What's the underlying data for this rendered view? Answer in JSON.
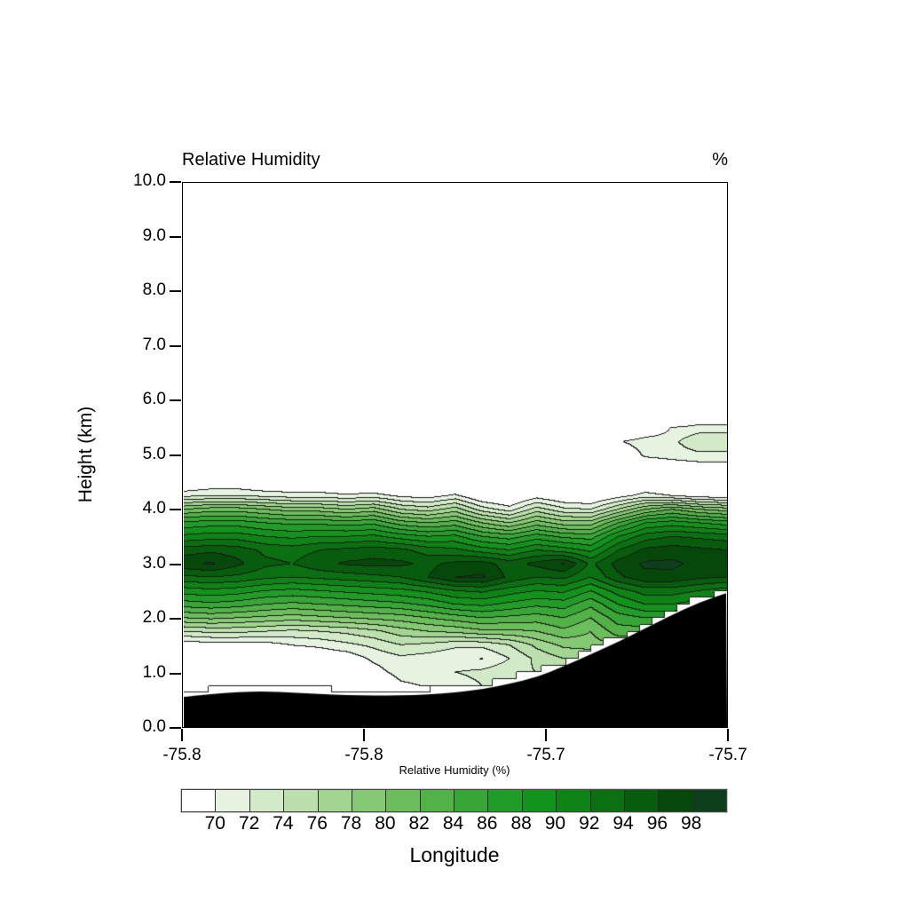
{
  "title": "Relative Humidity",
  "units_label": "%",
  "axes": {
    "x_label": "Longitude",
    "y_label": "Height (km)",
    "x_tick_labels": [
      "-75.8",
      "-75.8",
      "-75.7",
      "-75.7"
    ],
    "y_tick_labels": [
      "0.0",
      "1.0",
      "2.0",
      "3.0",
      "4.0",
      "5.0",
      "6.0",
      "7.0",
      "8.0",
      "9.0",
      "10.0"
    ]
  },
  "colorbar": {
    "title": "Relative Humidity (%)",
    "labels": [
      "70",
      "72",
      "74",
      "76",
      "78",
      "80",
      "82",
      "84",
      "86",
      "88",
      "90",
      "92",
      "94",
      "96",
      "98"
    ]
  },
  "chart_data": {
    "type": "heatmap",
    "title": "Relative Humidity",
    "units": "%",
    "xlabel": "Longitude",
    "ylabel": "Height (km)",
    "x_range": [
      -75.8,
      -75.7
    ],
    "y_range_km": [
      0,
      10
    ],
    "contour_levels": [
      70,
      72,
      74,
      76,
      78,
      80,
      82,
      84,
      86,
      88,
      90,
      92,
      94,
      96,
      98
    ],
    "fill_colors": [
      "#ffffff",
      "#e6f3e0",
      "#d2eac8",
      "#bbdfad",
      "#a1d590",
      "#86c974",
      "#6cbd5b",
      "#52b147",
      "#38a537",
      "#229c28",
      "#12931c",
      "#0e8316",
      "#0b7011",
      "#085c0d",
      "#064809",
      "#0d3f1c"
    ],
    "contour_line_color": "#1a1a1a",
    "x_lon": [
      -75.8,
      -75.795,
      -75.79,
      -75.785,
      -75.78,
      -75.775,
      -75.77,
      -75.765,
      -75.76,
      -75.755,
      -75.75,
      -75.745,
      -75.74,
      -75.735,
      -75.73,
      -75.725,
      -75.72,
      -75.715,
      -75.71,
      -75.705,
      -75.7
    ],
    "z_km": [
      6.0,
      5.75,
      5.5,
      5.25,
      5.0,
      4.75,
      4.5,
      4.25,
      4.0,
      3.75,
      3.5,
      3.25,
      3.0,
      2.75,
      2.5,
      2.25,
      2.0,
      1.75,
      1.5,
      1.25,
      1.0,
      0.75,
      0.5
    ],
    "rh_grid": [
      [
        60,
        60,
        60,
        60,
        60,
        60,
        60,
        60,
        60,
        60,
        60,
        60,
        60,
        60,
        60,
        60,
        60,
        60,
        60,
        60,
        60
      ],
      [
        60,
        60,
        60,
        60,
        60,
        60,
        60,
        60,
        60,
        60,
        60,
        60,
        60,
        60,
        60,
        60,
        60,
        60,
        63,
        67,
        67
      ],
      [
        60,
        60,
        60,
        60,
        60,
        60,
        60,
        60,
        60,
        60,
        60,
        60,
        60,
        60,
        60,
        60,
        62,
        66,
        70.3,
        71,
        71
      ],
      [
        60,
        60,
        60,
        60,
        60,
        60,
        60,
        60,
        60,
        60,
        60,
        60,
        60,
        60,
        60,
        62,
        69.6,
        71.8,
        71.5,
        73.6,
        73.6
      ],
      [
        60,
        60,
        60,
        60,
        60,
        60,
        60,
        60,
        60,
        60,
        60,
        60,
        60,
        60,
        60,
        61,
        66,
        70.5,
        71,
        71.5,
        71.5
      ],
      [
        61,
        61,
        61,
        61,
        61,
        61,
        61,
        61,
        61,
        61,
        61,
        61,
        61,
        61,
        61,
        61,
        62,
        67,
        68,
        68.5,
        68.5
      ],
      [
        67,
        68,
        68,
        67,
        67,
        67,
        66,
        66,
        65,
        65,
        66,
        64,
        63,
        65,
        64,
        63,
        65,
        67,
        66,
        65,
        65
      ],
      [
        71.5,
        72,
        72,
        71.5,
        71,
        71,
        70.5,
        71,
        69.5,
        69,
        70.5,
        67.5,
        66.5,
        69,
        67.5,
        67,
        69,
        71,
        70,
        69,
        68.5
      ],
      [
        80,
        81,
        81,
        80,
        79,
        79,
        78,
        79,
        76,
        75,
        77,
        73,
        71,
        75,
        72.5,
        72,
        76,
        80,
        82,
        80,
        79
      ],
      [
        86.5,
        87,
        87,
        86,
        85.5,
        85.5,
        85,
        85.5,
        83,
        82,
        83,
        80,
        78,
        81,
        79,
        79,
        84,
        88,
        89,
        88,
        87
      ],
      [
        90.5,
        91,
        91,
        90,
        89.5,
        90,
        90,
        90.5,
        89,
        88,
        88.5,
        86,
        85,
        87,
        85.5,
        85,
        90,
        93,
        94,
        93.5,
        93
      ],
      [
        95,
        95.5,
        95,
        93.5,
        93,
        94,
        94.5,
        95,
        94.5,
        93,
        92.5,
        91,
        90,
        92,
        91,
        89.5,
        94,
        96.5,
        97,
        96.5,
        96
      ],
      [
        97.5,
        98.3,
        96.5,
        94.5,
        94,
        95.5,
        96.3,
        96.6,
        96.4,
        95.5,
        96.5,
        96.8,
        95,
        96.6,
        98.2,
        93.5,
        96.8,
        98.3,
        98.4,
        97.5,
        97
      ],
      [
        93.5,
        94,
        93.5,
        92.5,
        92,
        92.5,
        93,
        93.5,
        94,
        96,
        98,
        98.3,
        95.5,
        94,
        94.5,
        92,
        95.5,
        97.5,
        97.5,
        96.5,
        96
      ],
      [
        89,
        89.5,
        89,
        88,
        87.5,
        88,
        88.5,
        89,
        89.5,
        90.5,
        92,
        92.5,
        91,
        90,
        90.5,
        88,
        91,
        93,
        93,
        92,
        91
      ],
      [
        85,
        85.5,
        85,
        84,
        83.5,
        84,
        84.5,
        85,
        85.5,
        86.5,
        88,
        88.5,
        87.5,
        86.5,
        87,
        84.5,
        88,
        90,
        90,
        89,
        88
      ],
      [
        80,
        80.5,
        80,
        79.5,
        79,
        79.5,
        80,
        80.5,
        81,
        82,
        83,
        84,
        83.5,
        83,
        84,
        82,
        85,
        86,
        86,
        86,
        86
      ],
      [
        74,
        74.5,
        74.5,
        74,
        73.5,
        74,
        74.5,
        75.5,
        77,
        78,
        78.5,
        79.5,
        79.5,
        80,
        81.5,
        80,
        83,
        83,
        83,
        83,
        83
      ],
      [
        68.5,
        69,
        69,
        69,
        70.1,
        70.5,
        71.5,
        72.5,
        74,
        73.5,
        72.5,
        72.5,
        74,
        76.5,
        78.5,
        79,
        80,
        80,
        80,
        80,
        80
      ],
      [
        64,
        64.5,
        65,
        66,
        67,
        68,
        68.5,
        70.5,
        71.5,
        71,
        70.3,
        69.9,
        72,
        74.5,
        76,
        76,
        76,
        76,
        76,
        76,
        76
      ],
      [
        62,
        62.5,
        63,
        64,
        65,
        66,
        66.5,
        69,
        71,
        71.5,
        72,
        72.5,
        73.5,
        74,
        74,
        74,
        74,
        74,
        74,
        74,
        74
      ],
      [
        66,
        67,
        67,
        67,
        66.5,
        66,
        66,
        66.5,
        69.5,
        70.2,
        71,
        72,
        72,
        72,
        72,
        72,
        72,
        72,
        72,
        72,
        72
      ],
      [
        60,
        60,
        60,
        60,
        60,
        60,
        60,
        60,
        60,
        60,
        60,
        60,
        60,
        60,
        60,
        60,
        60,
        60,
        60,
        60,
        60
      ]
    ],
    "terrain_km": [
      0.54,
      0.59,
      0.63,
      0.64,
      0.62,
      0.59,
      0.575,
      0.565,
      0.565,
      0.58,
      0.62,
      0.68,
      0.78,
      0.9,
      1.1,
      1.32,
      1.55,
      1.8,
      2.05,
      2.28,
      2.45
    ],
    "terrain_color": "#000000",
    "mask_step_km": 0.125,
    "mask_columns": 44,
    "mask_offset_km": 0.04
  }
}
